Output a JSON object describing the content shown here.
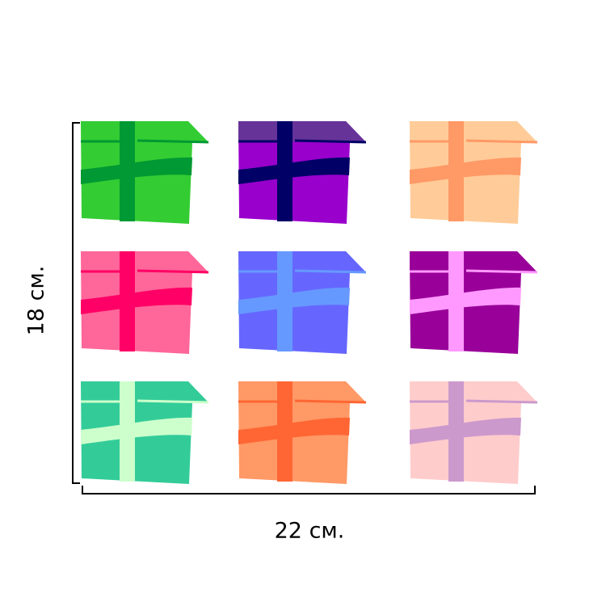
{
  "dimensions": {
    "width_label": "22 см.",
    "height_label": "18 см."
  },
  "boxes": [
    {
      "body": "#33cc33",
      "ribbon": "#009933",
      "lid": null
    },
    {
      "body": "#9900cc",
      "ribbon": "#000066",
      "lid": "#663399"
    },
    {
      "body": "#ffcc99",
      "ribbon": "#ff9966",
      "lid": null
    },
    {
      "body": "#ff6699",
      "ribbon": "#ff0066",
      "lid": null
    },
    {
      "body": "#6666ff",
      "ribbon": "#6699ff",
      "lid": null
    },
    {
      "body": "#990099",
      "ribbon": "#ff99ff",
      "lid": "#990099"
    },
    {
      "body": "#33cc99",
      "ribbon": "#ccffcc",
      "lid": null
    },
    {
      "body": "#ff9966",
      "ribbon": "#ff6633",
      "lid": null
    },
    {
      "body": "#ffcccc",
      "ribbon": "#cc99cc",
      "lid": null
    }
  ]
}
